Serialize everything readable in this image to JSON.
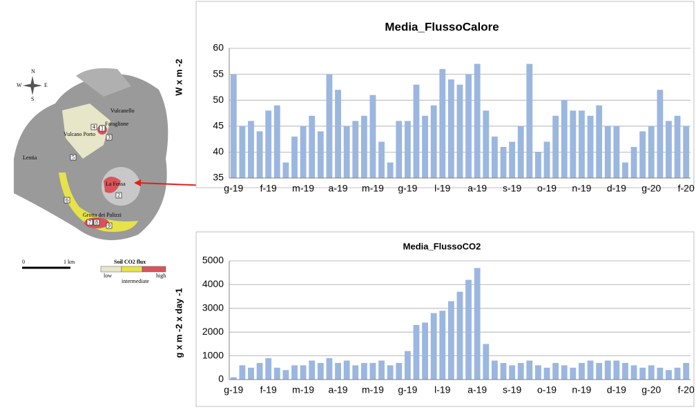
{
  "chart_data": [
    {
      "type": "bar",
      "title": "Media_FlussoCalore",
      "y_label": "W  x  m -2",
      "color": "#9bb7e0",
      "grid": true,
      "categories": [
        "g-19",
        null,
        null,
        null,
        "f-19",
        null,
        null,
        null,
        "m-19",
        null,
        null,
        null,
        "a-19",
        null,
        null,
        null,
        "m-19",
        null,
        null,
        null,
        "g-19",
        null,
        null,
        null,
        "l-19",
        null,
        null,
        null,
        "a-19",
        null,
        null,
        null,
        "s-19",
        null,
        null,
        null,
        "o-19",
        null,
        null,
        null,
        "n-19",
        null,
        null,
        null,
        "d-19",
        null,
        null,
        null,
        "g-20",
        null,
        null,
        null,
        "f-20"
      ],
      "values": [
        55,
        45,
        46,
        44,
        48,
        49,
        38,
        43,
        45,
        47,
        44,
        55,
        52,
        45,
        46,
        47,
        51,
        42,
        38,
        46,
        46,
        53,
        47,
        49,
        56,
        54,
        53,
        55,
        57,
        48,
        43,
        41,
        42,
        45,
        57,
        40,
        42,
        47,
        50,
        48,
        48,
        47,
        49,
        45,
        45,
        38,
        41,
        44,
        45,
        52,
        46,
        47,
        45
      ],
      "ylim": [
        35,
        60
      ],
      "yticks": [
        35,
        40,
        45,
        50,
        55,
        60
      ]
    },
    {
      "type": "bar",
      "title": "Media_FlussoCO2",
      "y_label": "g x m -2 x day -1",
      "color": "#9bb7e0",
      "grid": true,
      "categories": [
        "g-19",
        null,
        null,
        null,
        "f-19",
        null,
        null,
        null,
        "m-19",
        null,
        null,
        null,
        "a-19",
        null,
        null,
        null,
        "m-19",
        null,
        null,
        null,
        "g-19",
        null,
        null,
        null,
        "l-19",
        null,
        null,
        null,
        "a-19",
        null,
        null,
        null,
        "s-19",
        null,
        null,
        null,
        "o-19",
        null,
        null,
        null,
        "n-19",
        null,
        null,
        null,
        "d-19",
        null,
        null,
        null,
        "g-20",
        null,
        null,
        null,
        "f-20"
      ],
      "values": [
        100,
        600,
        500,
        700,
        900,
        500,
        400,
        600,
        600,
        800,
        700,
        900,
        700,
        800,
        600,
        700,
        700,
        800,
        600,
        700,
        1200,
        2300,
        2400,
        2800,
        2900,
        3300,
        3700,
        4200,
        4700,
        1500,
        800,
        700,
        600,
        700,
        800,
        600,
        500,
        700,
        600,
        500,
        700,
        800,
        700,
        800,
        800,
        700,
        600,
        500,
        600,
        500,
        400,
        500,
        700
      ],
      "ylim": [
        0,
        5000
      ],
      "yticks": [
        0,
        1000,
        2000,
        3000,
        4000,
        5000
      ]
    }
  ],
  "map": {
    "compass": [
      "N",
      "S",
      "W",
      "E"
    ],
    "places": [
      "Vulcanello",
      "Faraglione",
      "Vulcano Porto",
      "Lentia",
      "La Fossa",
      "Grotta dei Palizzi"
    ],
    "sites": [
      "1",
      "2",
      "3",
      "4",
      "5",
      "6",
      "7",
      "8",
      "9"
    ],
    "scale": [
      "0",
      "1 km"
    ],
    "legend": {
      "title": "Soil CO2 flux",
      "low": "low",
      "intermediate": "intermediate",
      "high": "high"
    }
  }
}
